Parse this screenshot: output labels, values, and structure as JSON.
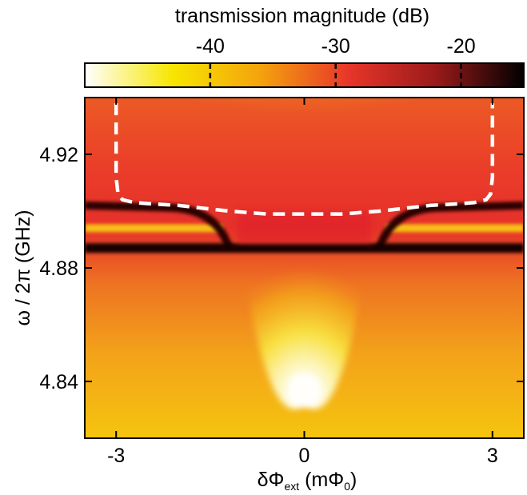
{
  "chart_data": {
    "type": "heatmap",
    "title": "",
    "colorbar": {
      "label": "transmission magnitude (dB)",
      "ticks": [
        -40,
        -30,
        -20
      ],
      "tick_labels": [
        "-40",
        "-30",
        "-20"
      ],
      "range": [
        -50,
        -15
      ],
      "colormap": [
        "#ffffff",
        "#f7e600",
        "#f4a30c",
        "#e8362a",
        "#9a1a1a",
        "#000000"
      ]
    },
    "xlabel": "δΦ",
    "xlabel_sub": "ext",
    "xlabel_unit_open": " (mΦ",
    "xlabel_unit_sub": "0",
    "xlabel_unit_close": ")",
    "ylabel": "ω / 2π (GHz)",
    "xlim": [
      -3.5,
      3.5
    ],
    "ylim": [
      4.82,
      4.94
    ],
    "x_ticks": [
      -3,
      0,
      3
    ],
    "x_tick_labels": [
      "-3",
      "0",
      "3"
    ],
    "y_ticks": [
      4.84,
      4.88,
      4.92
    ],
    "y_tick_labels": [
      "4.84",
      "4.88",
      "4.92"
    ],
    "features": {
      "dark_resonance_upper_GHz": 4.902,
      "dark_resonance_lower_GHz": 4.887,
      "bright_band_GHz": 4.894,
      "avoided_crossing_flux": [
        -1.2,
        1.2
      ],
      "dip_bottom_GHz": 4.832,
      "dip_top_GHz": 4.884
    },
    "series": [
      {
        "style": "dashed",
        "color": "#ffffff",
        "x": [
          -3.0,
          -3.0,
          -2.97,
          -2.9,
          -2.7,
          -2.4,
          -2.0,
          -1.6,
          -1.2,
          -0.9,
          -0.6,
          0,
          0.6,
          0.9,
          1.2,
          1.6,
          2.0,
          2.4,
          2.7,
          2.9,
          2.97,
          3.0,
          3.0
        ],
        "y": [
          4.938,
          4.912,
          4.906,
          4.904,
          4.903,
          4.9025,
          4.902,
          4.901,
          4.9,
          4.8995,
          4.899,
          4.899,
          4.899,
          4.8995,
          4.9,
          4.901,
          4.902,
          4.9025,
          4.903,
          4.904,
          4.906,
          4.912,
          4.938
        ]
      }
    ]
  }
}
